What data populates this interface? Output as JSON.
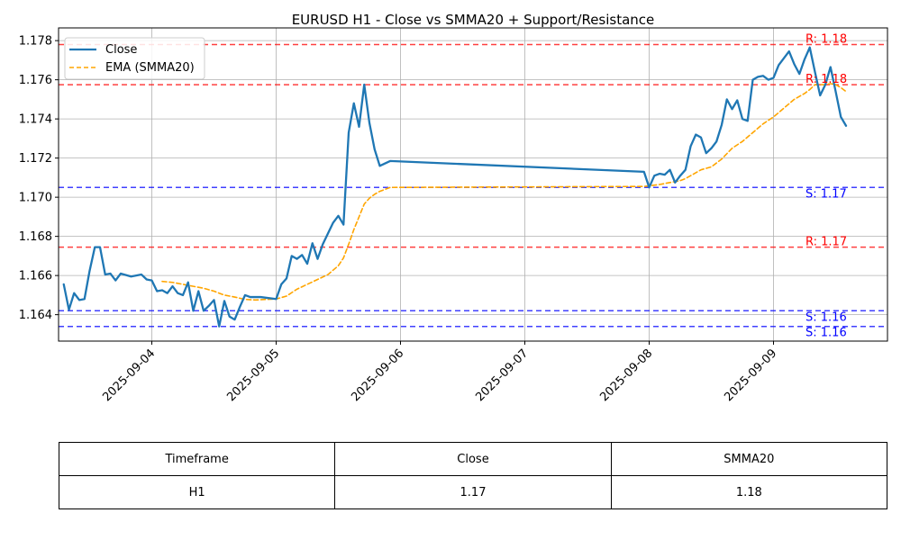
{
  "chart_data": {
    "type": "line",
    "title": "EURUSD H1 - Close vs SMMA20 + Support/Resistance",
    "xlabel": "",
    "ylabel": "",
    "xlim": [
      "2025-09-03T06:00",
      "2025-09-09T22:00"
    ],
    "ylim": [
      1.16265,
      1.17865
    ],
    "x_ticks": [
      "2025-09-04",
      "2025-09-05",
      "2025-09-06",
      "2025-09-07",
      "2025-09-08",
      "2025-09-09"
    ],
    "y_ticks": [
      "1.164",
      "1.166",
      "1.168",
      "1.170",
      "1.172",
      "1.174",
      "1.176",
      "1.178"
    ],
    "grid": true,
    "legend_position": "top-left",
    "series": [
      {
        "name": "Close",
        "color": "#1f77b4",
        "style": "solid",
        "points": [
          [
            "2025-09-03T07:00",
            1.16555
          ],
          [
            "2025-09-03T08:00",
            1.16425
          ],
          [
            "2025-09-03T09:00",
            1.1651
          ],
          [
            "2025-09-03T10:00",
            1.16475
          ],
          [
            "2025-09-03T11:00",
            1.1648
          ],
          [
            "2025-09-03T12:00",
            1.16625
          ],
          [
            "2025-09-03T13:00",
            1.16745
          ],
          [
            "2025-09-03T14:00",
            1.16745
          ],
          [
            "2025-09-03T15:00",
            1.16605
          ],
          [
            "2025-09-03T16:00",
            1.1661
          ],
          [
            "2025-09-03T17:00",
            1.16575
          ],
          [
            "2025-09-03T18:00",
            1.1661
          ],
          [
            "2025-09-03T20:00",
            1.16595
          ],
          [
            "2025-09-03T22:00",
            1.16605
          ],
          [
            "2025-09-03T23:00",
            1.1658
          ],
          [
            "2025-09-04T00:00",
            1.16575
          ],
          [
            "2025-09-04T01:00",
            1.1652
          ],
          [
            "2025-09-04T02:00",
            1.16525
          ],
          [
            "2025-09-04T03:00",
            1.1651
          ],
          [
            "2025-09-04T04:00",
            1.16545
          ],
          [
            "2025-09-04T05:00",
            1.1651
          ],
          [
            "2025-09-04T06:00",
            1.165
          ],
          [
            "2025-09-04T07:00",
            1.16565
          ],
          [
            "2025-09-04T08:00",
            1.1642
          ],
          [
            "2025-09-04T09:00",
            1.1652
          ],
          [
            "2025-09-04T10:00",
            1.1642
          ],
          [
            "2025-09-04T11:00",
            1.16445
          ],
          [
            "2025-09-04T12:00",
            1.16475
          ],
          [
            "2025-09-04T13:00",
            1.1634
          ],
          [
            "2025-09-04T14:00",
            1.1647
          ],
          [
            "2025-09-04T15:00",
            1.1639
          ],
          [
            "2025-09-04T16:00",
            1.16375
          ],
          [
            "2025-09-04T17:00",
            1.1644
          ],
          [
            "2025-09-04T18:00",
            1.165
          ],
          [
            "2025-09-04T19:00",
            1.1649
          ],
          [
            "2025-09-04T21:00",
            1.1649
          ],
          [
            "2025-09-05T00:00",
            1.1648
          ],
          [
            "2025-09-05T01:00",
            1.16555
          ],
          [
            "2025-09-05T02:00",
            1.16585
          ],
          [
            "2025-09-05T03:00",
            1.167
          ],
          [
            "2025-09-05T04:00",
            1.16685
          ],
          [
            "2025-09-05T05:00",
            1.16705
          ],
          [
            "2025-09-05T06:00",
            1.1666
          ],
          [
            "2025-09-05T07:00",
            1.16765
          ],
          [
            "2025-09-05T08:00",
            1.16685
          ],
          [
            "2025-09-05T09:00",
            1.1676
          ],
          [
            "2025-09-05T10:00",
            1.16815
          ],
          [
            "2025-09-05T11:00",
            1.1687
          ],
          [
            "2025-09-05T12:00",
            1.16905
          ],
          [
            "2025-09-05T13:00",
            1.1686
          ],
          [
            "2025-09-05T14:00",
            1.1733
          ],
          [
            "2025-09-05T15:00",
            1.1748
          ],
          [
            "2025-09-05T16:00",
            1.1736
          ],
          [
            "2025-09-05T17:00",
            1.17575
          ],
          [
            "2025-09-05T18:00",
            1.1738
          ],
          [
            "2025-09-05T19:00",
            1.17245
          ],
          [
            "2025-09-05T20:00",
            1.1716
          ],
          [
            "2025-09-05T22:00",
            1.17185
          ],
          [
            "2025-09-07T23:00",
            1.1713
          ],
          [
            "2025-09-08T00:00",
            1.1705
          ],
          [
            "2025-09-08T01:00",
            1.1711
          ],
          [
            "2025-09-08T02:00",
            1.1712
          ],
          [
            "2025-09-08T03:00",
            1.17115
          ],
          [
            "2025-09-08T04:00",
            1.1714
          ],
          [
            "2025-09-08T05:00",
            1.17075
          ],
          [
            "2025-09-08T06:00",
            1.1711
          ],
          [
            "2025-09-08T07:00",
            1.1714
          ],
          [
            "2025-09-08T08:00",
            1.1726
          ],
          [
            "2025-09-08T09:00",
            1.1732
          ],
          [
            "2025-09-08T10:00",
            1.17305
          ],
          [
            "2025-09-08T11:00",
            1.17225
          ],
          [
            "2025-09-08T12:00",
            1.1725
          ],
          [
            "2025-09-08T13:00",
            1.17285
          ],
          [
            "2025-09-08T14:00",
            1.1737
          ],
          [
            "2025-09-08T15:00",
            1.175
          ],
          [
            "2025-09-08T16:00",
            1.1745
          ],
          [
            "2025-09-08T17:00",
            1.17495
          ],
          [
            "2025-09-08T18:00",
            1.174
          ],
          [
            "2025-09-08T19:00",
            1.1739
          ],
          [
            "2025-09-08T20:00",
            1.176
          ],
          [
            "2025-09-08T21:00",
            1.17615
          ],
          [
            "2025-09-08T22:00",
            1.1762
          ],
          [
            "2025-09-08T23:00",
            1.176
          ],
          [
            "2025-09-09T00:00",
            1.1761
          ],
          [
            "2025-09-09T01:00",
            1.17675
          ],
          [
            "2025-09-09T02:00",
            1.1771
          ],
          [
            "2025-09-09T03:00",
            1.17745
          ],
          [
            "2025-09-09T04:00",
            1.1768
          ],
          [
            "2025-09-09T05:00",
            1.1763
          ],
          [
            "2025-09-09T06:00",
            1.17705
          ],
          [
            "2025-09-09T07:00",
            1.17765
          ],
          [
            "2025-09-09T08:00",
            1.1764
          ],
          [
            "2025-09-09T09:00",
            1.1752
          ],
          [
            "2025-09-09T10:00",
            1.17575
          ],
          [
            "2025-09-09T11:00",
            1.17665
          ],
          [
            "2025-09-09T12:00",
            1.1754
          ],
          [
            "2025-09-09T13:00",
            1.1741
          ],
          [
            "2025-09-09T14:00",
            1.17365
          ]
        ]
      },
      {
        "name": "EMA (SMMA20)",
        "color": "#ffa500",
        "style": "dashed",
        "points": [
          [
            "2025-09-04T02:00",
            1.1657
          ],
          [
            "2025-09-04T04:00",
            1.16565
          ],
          [
            "2025-09-04T06:00",
            1.16555
          ],
          [
            "2025-09-04T08:00",
            1.16545
          ],
          [
            "2025-09-04T10:00",
            1.16535
          ],
          [
            "2025-09-04T12:00",
            1.1652
          ],
          [
            "2025-09-04T14:00",
            1.165
          ],
          [
            "2025-09-04T16:00",
            1.1649
          ],
          [
            "2025-09-04T18:00",
            1.16478
          ],
          [
            "2025-09-04T20:00",
            1.16475
          ],
          [
            "2025-09-04T22:00",
            1.16478
          ],
          [
            "2025-09-05T00:00",
            1.1648
          ],
          [
            "2025-09-05T02:00",
            1.16495
          ],
          [
            "2025-09-05T04:00",
            1.1653
          ],
          [
            "2025-09-05T06:00",
            1.16555
          ],
          [
            "2025-09-05T08:00",
            1.1658
          ],
          [
            "2025-09-05T10:00",
            1.16605
          ],
          [
            "2025-09-05T12:00",
            1.1665
          ],
          [
            "2025-09-05T13:00",
            1.1669
          ],
          [
            "2025-09-05T14:00",
            1.1676
          ],
          [
            "2025-09-05T15:00",
            1.16835
          ],
          [
            "2025-09-05T16:00",
            1.169
          ],
          [
            "2025-09-05T17:00",
            1.16965
          ],
          [
            "2025-09-05T18:00",
            1.16995
          ],
          [
            "2025-09-05T19:00",
            1.17015
          ],
          [
            "2025-09-05T20:00",
            1.1703
          ],
          [
            "2025-09-05T22:00",
            1.1705
          ],
          [
            "2025-09-07T23:00",
            1.17055
          ],
          [
            "2025-09-08T02:00",
            1.17065
          ],
          [
            "2025-09-08T04:00",
            1.17075
          ],
          [
            "2025-09-08T06:00",
            1.17085
          ],
          [
            "2025-09-08T07:00",
            1.17095
          ],
          [
            "2025-09-08T08:00",
            1.1711
          ],
          [
            "2025-09-08T09:00",
            1.17125
          ],
          [
            "2025-09-08T10:00",
            1.1714
          ],
          [
            "2025-09-08T12:00",
            1.17155
          ],
          [
            "2025-09-08T14:00",
            1.17195
          ],
          [
            "2025-09-08T16:00",
            1.1725
          ],
          [
            "2025-09-08T18:00",
            1.17285
          ],
          [
            "2025-09-08T20:00",
            1.1733
          ],
          [
            "2025-09-08T22:00",
            1.17375
          ],
          [
            "2025-09-09T00:00",
            1.1741
          ],
          [
            "2025-09-09T02:00",
            1.17455
          ],
          [
            "2025-09-09T04:00",
            1.175
          ],
          [
            "2025-09-09T06:00",
            1.1753
          ],
          [
            "2025-09-09T07:00",
            1.1755
          ],
          [
            "2025-09-09T08:00",
            1.17575
          ],
          [
            "2025-09-09T09:00",
            1.17575
          ],
          [
            "2025-09-09T10:00",
            1.17575
          ],
          [
            "2025-09-09T11:00",
            1.1758
          ],
          [
            "2025-09-09T12:00",
            1.17575
          ],
          [
            "2025-09-09T13:00",
            1.1756
          ],
          [
            "2025-09-09T14:00",
            1.1754
          ]
        ]
      }
    ],
    "levels": [
      {
        "kind": "resistance",
        "value": 1.1778,
        "label": "R: 1.18",
        "color": "#ff0000"
      },
      {
        "kind": "resistance",
        "value": 1.17575,
        "label": "R: 1.18",
        "color": "#ff0000"
      },
      {
        "kind": "support",
        "value": 1.1705,
        "label": "S: 1.17",
        "color": "#0000ff"
      },
      {
        "kind": "resistance",
        "value": 1.16745,
        "label": "R: 1.17",
        "color": "#ff0000"
      },
      {
        "kind": "support",
        "value": 1.1642,
        "label": "S: 1.16",
        "color": "#0000ff"
      },
      {
        "kind": "support",
        "value": 1.1634,
        "label": "S: 1.16",
        "color": "#0000ff"
      }
    ]
  },
  "summary_table": {
    "headers": [
      "Timeframe",
      "Close",
      "SMMA20"
    ],
    "rows": [
      [
        "H1",
        "1.17",
        "1.18"
      ]
    ]
  }
}
